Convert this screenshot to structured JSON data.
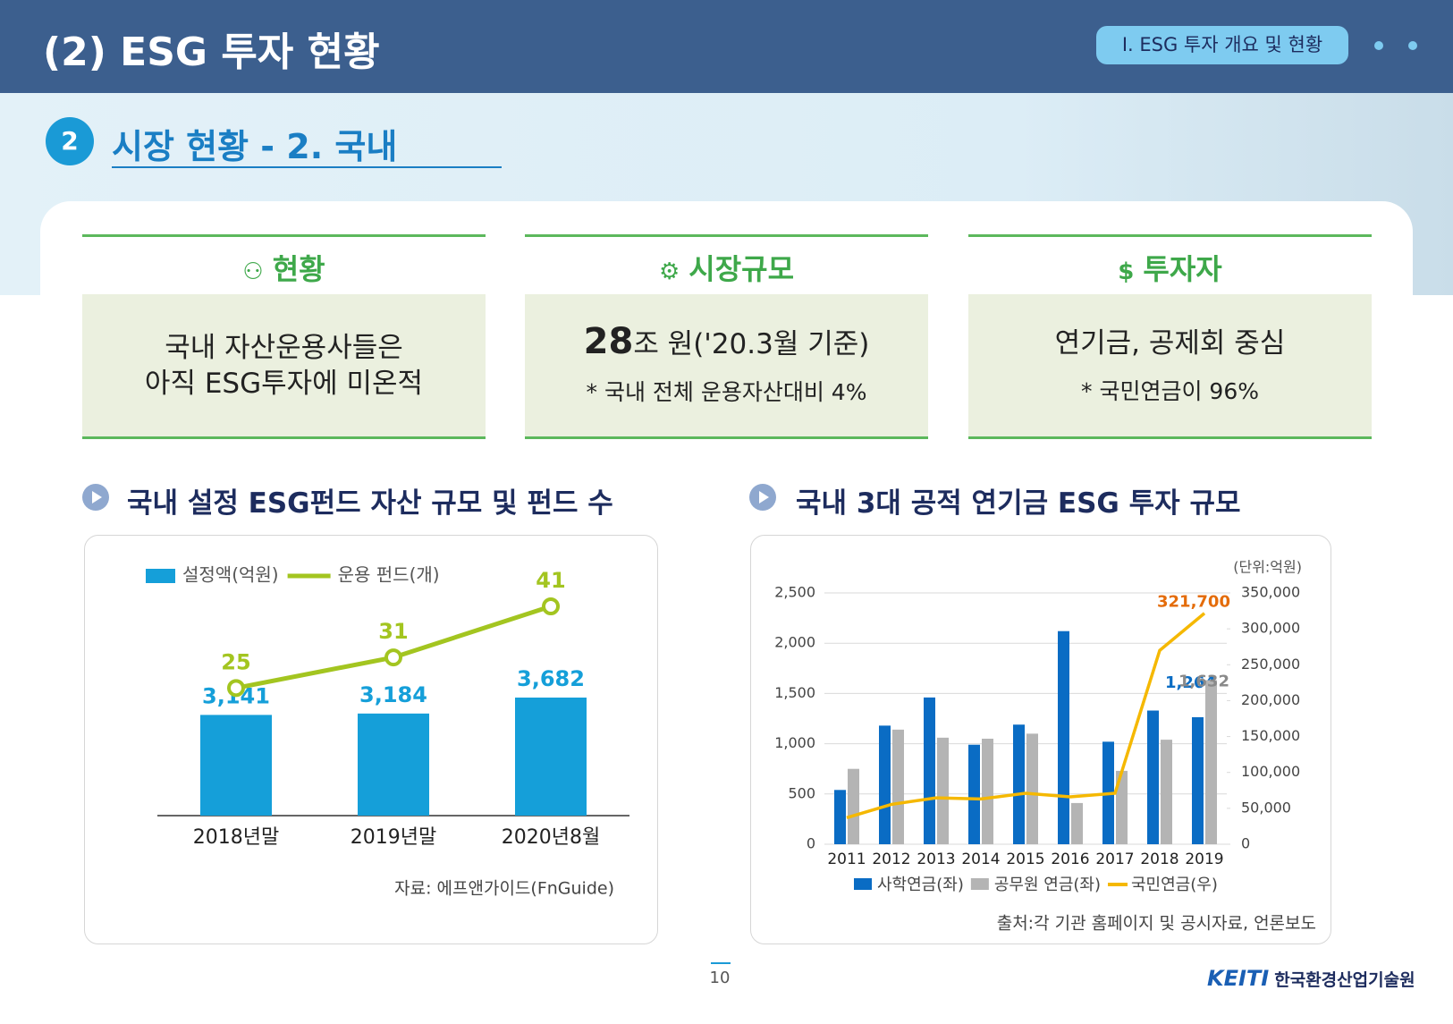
{
  "header": {
    "title": "(2) ESG 투자 현황",
    "badge": "I. ESG 투자 개요 및 현황"
  },
  "section": {
    "number": "2",
    "title": "시장 현황 - 2. 국내"
  },
  "cards": [
    {
      "title": "현황",
      "lines": [
        "국내 자산운용사들은",
        "아직 ESG투자에 미온적"
      ]
    },
    {
      "title": "시장규모",
      "figure": "28",
      "figure_unit": "조 원('20.3월 기준)",
      "note": "* 국내 전체 운용자산대비 4%"
    },
    {
      "title": "투자자",
      "lines": [
        "연기금, 공제회 중심"
      ],
      "note": "* 국민연금이 96%"
    }
  ],
  "chart_data": [
    {
      "type": "bar_line",
      "title": "국내 설정 ESG펀드 자산 규모 및 펀드 수",
      "categories": [
        "2018년말",
        "2019년말",
        "2020년8월"
      ],
      "series": [
        {
          "name": "설정액(억원)",
          "type": "bar",
          "color": "#159fd9",
          "values": [
            3141,
            3184,
            3682
          ],
          "value_labels": [
            "3,141",
            "3,184",
            "3,682"
          ]
        },
        {
          "name": "운용 펀드(개)",
          "type": "line",
          "color": "#a3c520",
          "values": [
            25,
            31,
            41
          ]
        }
      ],
      "legend": "top",
      "source": "자료: 에프앤가이드(FnGuide)"
    },
    {
      "type": "bar_line",
      "title": "국내 3대 공적 연기금 ESG 투자 규모",
      "categories": [
        "2011",
        "2012",
        "2013",
        "2014",
        "2015",
        "2016",
        "2017",
        "2018",
        "2019"
      ],
      "series": [
        {
          "name": "사학연금(좌)",
          "type": "bar",
          "color": "#0a6cc4",
          "values": [
            540,
            1180,
            1460,
            990,
            1190,
            2120,
            1020,
            1330,
            1264
          ],
          "value_labels": [
            null,
            null,
            null,
            null,
            null,
            null,
            null,
            null,
            "1,264"
          ]
        },
        {
          "name": "공무원 연금(좌)",
          "type": "bar",
          "color": "#b4b4b4",
          "values": [
            750,
            1140,
            1060,
            1050,
            1100,
            410,
            730,
            1040,
            1632
          ],
          "value_labels": [
            null,
            null,
            null,
            null,
            null,
            null,
            null,
            null,
            "1,632"
          ]
        },
        {
          "name": "국민연금(우)",
          "type": "line",
          "axis": "y2",
          "color": "#f5b800",
          "label_color": "#e46c0a",
          "values": [
            37000,
            55500,
            64600,
            63000,
            71000,
            66000,
            71000,
            270000,
            321700
          ],
          "value_labels": [
            null,
            null,
            null,
            null,
            null,
            null,
            null,
            null,
            "321,700"
          ]
        }
      ],
      "ylim": [
        0,
        2500
      ],
      "yticks": [
        0,
        500,
        {
          "value": 1000,
          "label": "1,000"
        },
        {
          "value": 1500,
          "label": "1,500"
        },
        {
          "value": 2000,
          "label": "2,000"
        },
        {
          "value": 2500,
          "label": "2,500"
        }
      ],
      "y2lim": [
        0,
        350000
      ],
      "y2ticks": [
        0,
        {
          "value": 50000,
          "label": "50,000"
        },
        {
          "value": 100000,
          "label": "100,000"
        },
        {
          "value": 150000,
          "label": "150,000"
        },
        {
          "value": 200000,
          "label": "200,000"
        },
        {
          "value": 250000,
          "label": "250,000"
        },
        {
          "value": 300000,
          "label": "300,000"
        },
        {
          "value": 350000,
          "label": "350,000"
        }
      ],
      "grid": true,
      "legend": "bottom",
      "unit": "(단위:억원)",
      "source": "출처:각 기관 홈페이지 및 공시자료, 언론보도"
    }
  ],
  "footer": {
    "page": "10",
    "logo_mark": "KEITI",
    "logo_text": "한국환경산업기술원"
  }
}
